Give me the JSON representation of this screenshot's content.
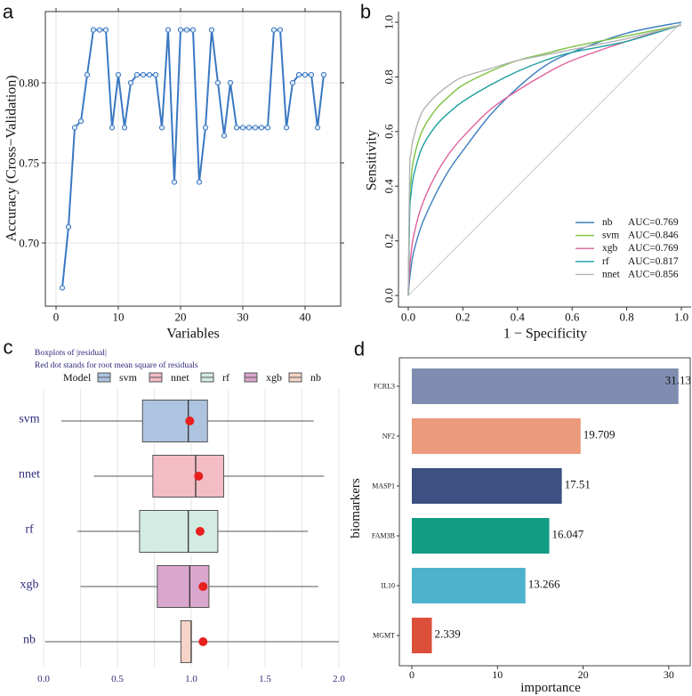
{
  "chart_data": [
    {
      "panel": "a",
      "type": "line",
      "xlabel": "Variables",
      "ylabel": "Accuracy (Cross−Validation)",
      "xticks": [
        "0",
        "10",
        "20",
        "30",
        "40"
      ],
      "yticks": [
        "0.70",
        "0.75",
        "0.80"
      ],
      "xlim": [
        -1.7,
        45.7
      ],
      "ylim": [
        0.663,
        0.848
      ],
      "grid": true,
      "color": "#3a78c2",
      "x": [
        1,
        2,
        3,
        4,
        5,
        6,
        7,
        8,
        9,
        10,
        11,
        12,
        13,
        14,
        15,
        16,
        17,
        18,
        19,
        20,
        21,
        22,
        23,
        24,
        25,
        26,
        27,
        28,
        29,
        30,
        31,
        32,
        33,
        34,
        35,
        36,
        37,
        38,
        39,
        40,
        41,
        42,
        43
      ],
      "y": [
        0.672,
        0.71,
        0.772,
        0.776,
        0.805,
        0.833,
        0.833,
        0.833,
        0.772,
        0.805,
        0.772,
        0.8,
        0.805,
        0.805,
        0.805,
        0.805,
        0.772,
        0.833,
        0.738,
        0.833,
        0.833,
        0.833,
        0.738,
        0.772,
        0.833,
        0.8,
        0.767,
        0.8,
        0.772,
        0.772,
        0.772,
        0.772,
        0.772,
        0.772,
        0.833,
        0.833,
        0.772,
        0.8,
        0.805,
        0.805,
        0.805,
        0.772,
        0.805
      ]
    },
    {
      "panel": "b",
      "type": "line",
      "xlabel": "1 − Specificity",
      "ylabel": "Sensitivity",
      "xticks": [
        "0.0",
        "0.2",
        "0.4",
        "0.6",
        "0.8",
        "1.0"
      ],
      "yticks": [
        "0.0",
        "0.2",
        "0.4",
        "0.6",
        "0.8",
        "1.0"
      ],
      "xlim": [
        -0.04,
        1.04
      ],
      "ylim": [
        -0.04,
        1.04
      ],
      "grid": false,
      "legend_position": "bottom-right",
      "diagonal_color": "#c8c8c8",
      "x": [
        0,
        0.005,
        0.01,
        0.02,
        0.05,
        0.1,
        0.15,
        0.2,
        0.3,
        0.4,
        0.5,
        0.6,
        0.8,
        1
      ],
      "series": [
        {
          "name": "nb",
          "auc": "AUC=0.769",
          "color": "#3d7fbf",
          "values": [
            0,
            0.06,
            0.1,
            0.16,
            0.26,
            0.37,
            0.46,
            0.53,
            0.66,
            0.76,
            0.84,
            0.89,
            0.96,
            1.0
          ]
        },
        {
          "name": "svm",
          "auc": "AUC=0.846",
          "color": "#7cc242",
          "values": [
            0,
            0.35,
            0.42,
            0.5,
            0.6,
            0.68,
            0.73,
            0.77,
            0.82,
            0.86,
            0.885,
            0.91,
            0.95,
            0.99
          ]
        },
        {
          "name": "xgb",
          "auc": "AUC=0.769",
          "color": "#e0609a",
          "values": [
            0,
            0.1,
            0.15,
            0.22,
            0.33,
            0.44,
            0.52,
            0.58,
            0.68,
            0.75,
            0.81,
            0.86,
            0.93,
            0.99
          ]
        },
        {
          "name": "rf",
          "auc": "AUC=0.817",
          "color": "#1c9ea0",
          "values": [
            0,
            0.3,
            0.37,
            0.44,
            0.54,
            0.62,
            0.67,
            0.71,
            0.77,
            0.82,
            0.86,
            0.89,
            0.93,
            0.99
          ]
        },
        {
          "name": "nnet",
          "auc": "AUC=0.856",
          "color": "#b3b3b3",
          "values": [
            0,
            0.45,
            0.52,
            0.58,
            0.67,
            0.73,
            0.77,
            0.8,
            0.83,
            0.86,
            0.88,
            0.9,
            0.94,
            0.99
          ]
        }
      ]
    },
    {
      "panel": "c",
      "type": "boxplot",
      "title": "Boxplots of |residual|",
      "subtitle": "Red dot stands for root mean square of residuals",
      "legend_title": "Model",
      "legend_position": "top",
      "xticks": [
        "0.0",
        "0.5",
        "1.0",
        "1.5",
        "2.0"
      ],
      "xlim": [
        0,
        2.0
      ],
      "grid": true,
      "dot_color": "#e8201e",
      "text_color": "#2e2a7a",
      "legend_order": [
        "svm",
        "nnet",
        "rf",
        "xgb",
        "nb"
      ],
      "boxes": [
        {
          "name": "svm",
          "color": "#aec3e0",
          "whisker_low": 0.12,
          "q1": 0.67,
          "median": 0.98,
          "q3": 1.11,
          "whisker_high": 1.83,
          "rms": 0.99
        },
        {
          "name": "nnet",
          "color": "#f4bcc5",
          "whisker_low": 0.34,
          "q1": 0.74,
          "median": 1.03,
          "q3": 1.22,
          "whisker_high": 1.9,
          "rms": 1.05
        },
        {
          "name": "rf",
          "color": "#d3ece3",
          "whisker_low": 0.23,
          "q1": 0.65,
          "median": 0.98,
          "q3": 1.18,
          "whisker_high": 1.79,
          "rms": 1.06
        },
        {
          "name": "xgb",
          "color": "#d9a6cd",
          "whisker_low": 0.25,
          "q1": 0.77,
          "median": 0.99,
          "q3": 1.12,
          "whisker_high": 1.86,
          "rms": 1.08
        },
        {
          "name": "nb",
          "color": "#f6d3c6",
          "whisker_low": 0.01,
          "q1": 0.93,
          "median": 1.0,
          "q3": 1.0,
          "whisker_high": 2.0,
          "rms": 1.08
        }
      ]
    },
    {
      "panel": "d",
      "type": "bar",
      "orientation": "horizontal",
      "xlabel": "importance",
      "ylabel": "biomarkers",
      "xticks": [
        "0",
        "10",
        "20",
        "30"
      ],
      "xlim": [
        -1.5,
        32.5
      ],
      "grid": false,
      "categories": [
        "FCRL3",
        "NF2",
        "MASP1",
        "FAM3B",
        "IL10",
        "MGMT"
      ],
      "values": [
        31.13,
        19.709,
        17.51,
        16.047,
        13.266,
        2.339
      ],
      "labels": [
        "31.13",
        "19.709",
        "17.51",
        "16.047",
        "13.266",
        "2.339"
      ],
      "colors": [
        "#7f8db0",
        "#eb9a7c",
        "#3c5181",
        "#139c84",
        "#4db2cb",
        "#dc4f3a"
      ]
    }
  ],
  "panel_labels": [
    "a",
    "b",
    "c",
    "d"
  ]
}
